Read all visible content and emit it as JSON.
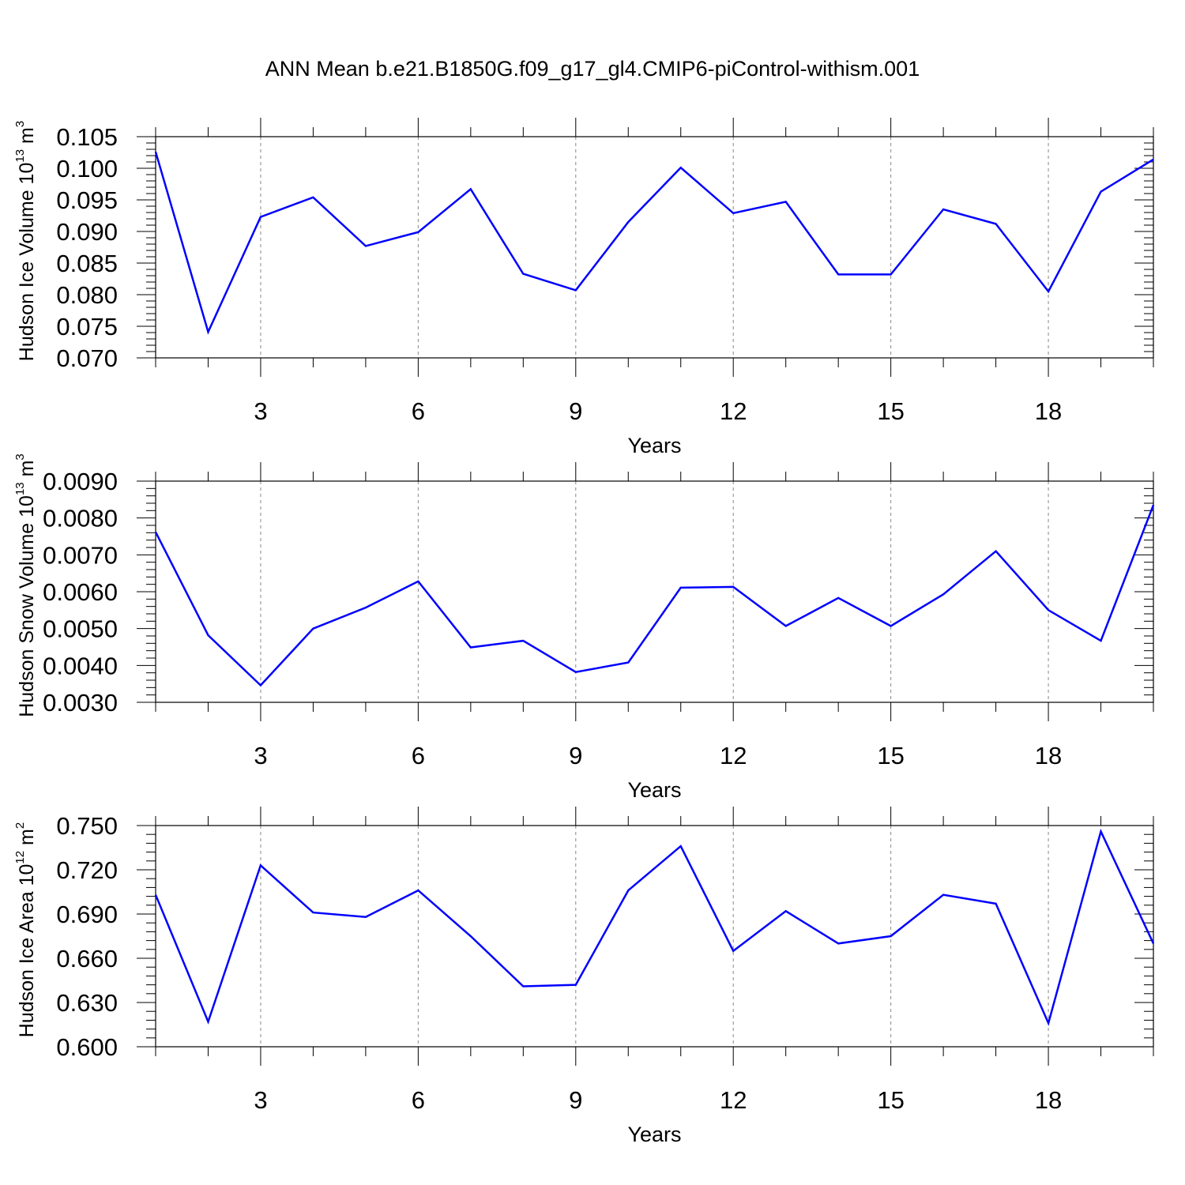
{
  "title": "ANN Mean b.e21.B1850G.f09_g17_gl4.CMIP6-piControl-withism.001",
  "colors": {
    "line": "#0000ff",
    "frame": "#000000",
    "grid": "#888888"
  },
  "chart_data": [
    {
      "type": "line",
      "ylabel": "Hudson Ice Volume 10",
      "ylabel_exp": "13",
      "ylabel_unit": " m",
      "ylabel_unit_exp": "3",
      "xlabel": "Years",
      "xlim": [
        1,
        20
      ],
      "ylim": [
        0.07,
        0.105
      ],
      "xticks": [
        3,
        6,
        9,
        12,
        15,
        18
      ],
      "xtick_labels": [
        "3",
        "6",
        "9",
        "12",
        "15",
        "18"
      ],
      "yticks": [
        0.07,
        0.075,
        0.08,
        0.085,
        0.09,
        0.095,
        0.1,
        0.105
      ],
      "ytick_labels": [
        "0.070",
        "0.075",
        "0.080",
        "0.085",
        "0.090",
        "0.095",
        "0.100",
        "0.105"
      ],
      "grid": "vertical dashed at major x ticks",
      "x": [
        1,
        2,
        3,
        4,
        5,
        6,
        7,
        8,
        9,
        10,
        11,
        12,
        13,
        14,
        15,
        16,
        17,
        18,
        19,
        20
      ],
      "y": [
        0.1026,
        0.0741,
        0.0923,
        0.0954,
        0.0877,
        0.0899,
        0.0967,
        0.0833,
        0.0807,
        0.0915,
        0.1001,
        0.0929,
        0.0947,
        0.0832,
        0.0832,
        0.0935,
        0.0912,
        0.0805,
        0.0963,
        0.1014
      ]
    },
    {
      "type": "line",
      "ylabel": "Hudson Snow Volume 10",
      "ylabel_exp": "13",
      "ylabel_unit": " m",
      "ylabel_unit_exp": "3",
      "xlabel": "Years",
      "xlim": [
        1,
        20
      ],
      "ylim": [
        0.003,
        0.009
      ],
      "xticks": [
        3,
        6,
        9,
        12,
        15,
        18
      ],
      "xtick_labels": [
        "3",
        "6",
        "9",
        "12",
        "15",
        "18"
      ],
      "yticks": [
        0.003,
        0.004,
        0.005,
        0.006,
        0.007,
        0.008,
        0.009
      ],
      "ytick_labels": [
        "0.0030",
        "0.0040",
        "0.0050",
        "0.0060",
        "0.0070",
        "0.0080",
        "0.0090"
      ],
      "grid": "vertical dashed at major x ticks",
      "x": [
        1,
        2,
        3,
        4,
        5,
        6,
        7,
        8,
        9,
        10,
        11,
        12,
        13,
        14,
        15,
        16,
        17,
        18,
        19,
        20
      ],
      "y": [
        0.00762,
        0.00482,
        0.00346,
        0.005,
        0.00557,
        0.00628,
        0.00449,
        0.00467,
        0.00382,
        0.00408,
        0.00611,
        0.00613,
        0.00507,
        0.00583,
        0.00507,
        0.00593,
        0.0071,
        0.0055,
        0.00467,
        0.00835
      ]
    },
    {
      "type": "line",
      "ylabel": "Hudson Ice Area 10",
      "ylabel_exp": "12",
      "ylabel_unit": " m",
      "ylabel_unit_exp": "2",
      "xlabel": "Years",
      "xlim": [
        1,
        20
      ],
      "ylim": [
        0.6,
        0.75
      ],
      "xticks": [
        3,
        6,
        9,
        12,
        15,
        18
      ],
      "xtick_labels": [
        "3",
        "6",
        "9",
        "12",
        "15",
        "18"
      ],
      "yticks": [
        0.6,
        0.63,
        0.66,
        0.69,
        0.72,
        0.75
      ],
      "ytick_labels": [
        "0.600",
        "0.630",
        "0.660",
        "0.690",
        "0.720",
        "0.750"
      ],
      "grid": "vertical dashed at major x ticks",
      "x": [
        1,
        2,
        3,
        4,
        5,
        6,
        7,
        8,
        9,
        10,
        11,
        12,
        13,
        14,
        15,
        16,
        17,
        18,
        19,
        20
      ],
      "y": [
        0.703,
        0.617,
        0.723,
        0.691,
        0.688,
        0.706,
        0.675,
        0.641,
        0.642,
        0.706,
        0.736,
        0.665,
        0.692,
        0.67,
        0.675,
        0.703,
        0.697,
        0.616,
        0.746,
        0.67
      ]
    }
  ]
}
